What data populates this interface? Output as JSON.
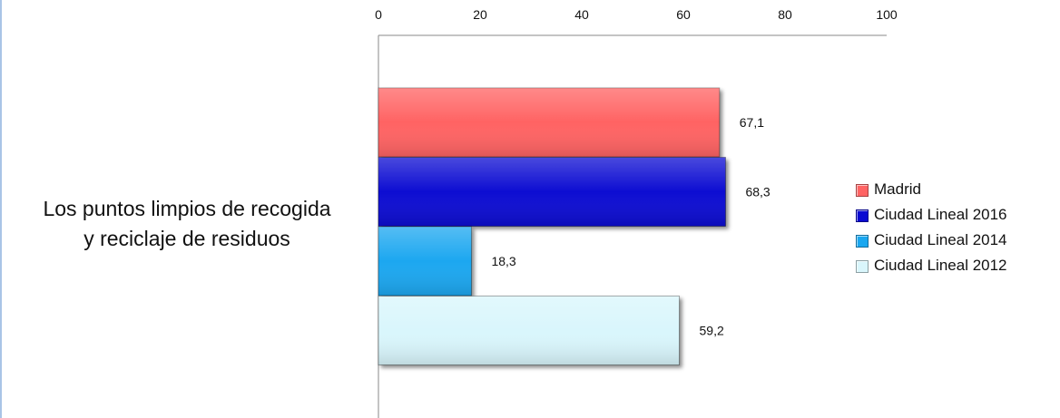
{
  "chart_data": {
    "type": "bar",
    "orientation": "horizontal",
    "category": {
      "line1": "Los puntos limpios de recogida",
      "line2": "y reciclaje de residuos"
    },
    "series": [
      {
        "name": "Madrid",
        "value": 67.1,
        "label": "67,1",
        "color": "#ff6464",
        "legend_label": "Madrid"
      },
      {
        "name": "Ciudad Lineal 2016",
        "value": 68.3,
        "label": "68,3",
        "color": "#0a0ad2",
        "legend_label": "Ciudad Lineal 2016"
      },
      {
        "name": "Ciudad Lineal 2014",
        "value": 18.3,
        "label": "18,3",
        "color": "#1aa7f0",
        "legend_label": "Ciudad Lineal 2014"
      },
      {
        "name": "Ciudad Lineal 2012",
        "value": 59.2,
        "label": "59,2",
        "color": "#d9f6fc",
        "legend_label": "Ciudad Lineal  2012"
      }
    ],
    "x_ticks": [
      "0",
      "20",
      "40",
      "60",
      "80",
      "100"
    ],
    "x_tick_values": [
      0,
      20,
      40,
      60,
      80,
      100
    ],
    "xlim": [
      0,
      100
    ],
    "axis_position": "top",
    "grid": false,
    "legend_position": "right"
  }
}
